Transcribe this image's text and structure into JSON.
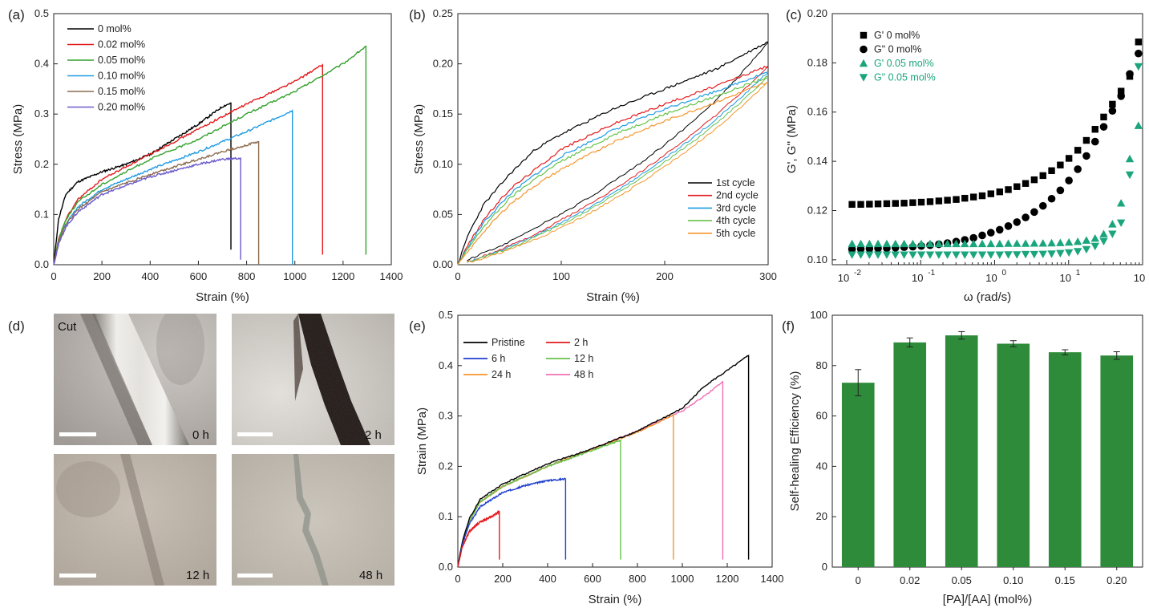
{
  "panels": {
    "a": {
      "label": "(a)"
    },
    "b": {
      "label": "(b)"
    },
    "c": {
      "label": "(c)"
    },
    "d": {
      "label": "(d)"
    },
    "e": {
      "label": "(e)"
    },
    "f": {
      "label": "(f)"
    }
  },
  "photos": {
    "cut_label": "Cut",
    "times": [
      "0 h",
      "2 h",
      "12 h",
      "48 h"
    ]
  },
  "chart_data": [
    {
      "id": "a",
      "type": "line",
      "xlabel": "Strain (%)",
      "ylabel": "Stress (MPa)",
      "xlim": [
        0,
        1400
      ],
      "ylim": [
        0,
        0.5
      ],
      "xticks": [
        0,
        200,
        400,
        600,
        800,
        1000,
        1200,
        1400
      ],
      "yticks": [
        0.0,
        0.1,
        0.2,
        0.3,
        0.4,
        0.5
      ],
      "legend_position": "top-left",
      "series": [
        {
          "name": "0 mol%",
          "color": "#000000",
          "x": [
            0,
            20,
            50,
            100,
            200,
            300,
            400,
            500,
            600,
            700,
            735
          ],
          "y": [
            0,
            0.09,
            0.14,
            0.165,
            0.185,
            0.2,
            0.22,
            0.25,
            0.28,
            0.315,
            0.322
          ],
          "break_at": 0.03
        },
        {
          "name": "0.02 mol%",
          "color": "#e41a1c",
          "x": [
            0,
            20,
            50,
            100,
            200,
            400,
            600,
            800,
            1000,
            1115
          ],
          "y": [
            0,
            0.05,
            0.09,
            0.13,
            0.17,
            0.22,
            0.27,
            0.32,
            0.365,
            0.398
          ],
          "break_at": 0.02
        },
        {
          "name": "0.05 mol%",
          "color": "#33a02c",
          "x": [
            0,
            20,
            50,
            100,
            200,
            400,
            600,
            800,
            1000,
            1200,
            1295
          ],
          "y": [
            0,
            0.05,
            0.09,
            0.125,
            0.16,
            0.21,
            0.25,
            0.3,
            0.345,
            0.4,
            0.435
          ],
          "break_at": 0.02
        },
        {
          "name": "0.10 mol%",
          "color": "#1f9be3",
          "x": [
            0,
            20,
            50,
            100,
            200,
            400,
            600,
            800,
            990
          ],
          "y": [
            0,
            0.045,
            0.08,
            0.115,
            0.15,
            0.19,
            0.225,
            0.265,
            0.307
          ],
          "break_at": 0.0
        },
        {
          "name": "0.15 mol%",
          "color": "#8c6d4f",
          "x": [
            0,
            20,
            50,
            100,
            200,
            400,
            600,
            700,
            850
          ],
          "y": [
            0,
            0.045,
            0.08,
            0.11,
            0.145,
            0.18,
            0.21,
            0.225,
            0.245
          ],
          "break_at": 0.0
        },
        {
          "name": "0.20 mol%",
          "color": "#6a5acd",
          "x": [
            0,
            20,
            50,
            100,
            200,
            400,
            600,
            700,
            775
          ],
          "y": [
            0,
            0.04,
            0.075,
            0.105,
            0.14,
            0.175,
            0.2,
            0.21,
            0.212
          ],
          "break_at": 0.01
        }
      ]
    },
    {
      "id": "b",
      "type": "line",
      "xlabel": "Strain (%)",
      "ylabel": "Stress (MPa)",
      "xlim": [
        0,
        300
      ],
      "ylim": [
        0,
        0.25
      ],
      "xticks": [
        0,
        100,
        200,
        300
      ],
      "yticks": [
        0.0,
        0.05,
        0.1,
        0.15,
        0.2,
        0.25
      ],
      "legend_position": "bottom-right",
      "series": [
        {
          "name": "1st  cycle",
          "color": "#000000",
          "x": [
            0,
            10,
            25,
            50,
            75,
            100,
            150,
            200,
            250,
            300
          ],
          "y": [
            0,
            0.03,
            0.06,
            0.09,
            0.115,
            0.13,
            0.155,
            0.175,
            0.195,
            0.222
          ]
        },
        {
          "name": "2nd cycle",
          "color": "#e41a1c",
          "x": [
            0,
            10,
            25,
            50,
            75,
            100,
            150,
            200,
            250,
            300
          ],
          "y": [
            0,
            0.02,
            0.045,
            0.075,
            0.095,
            0.115,
            0.14,
            0.16,
            0.178,
            0.198
          ]
        },
        {
          "name": "3rd  cycle",
          "color": "#1f9be3",
          "x": [
            0,
            10,
            25,
            50,
            75,
            100,
            150,
            200,
            250,
            300
          ],
          "y": [
            0,
            0.018,
            0.042,
            0.07,
            0.09,
            0.108,
            0.134,
            0.155,
            0.173,
            0.192
          ]
        },
        {
          "name": "4th  cycle",
          "color": "#66c24a",
          "x": [
            0,
            10,
            25,
            50,
            75,
            100,
            150,
            200,
            250,
            300
          ],
          "y": [
            0,
            0.016,
            0.038,
            0.066,
            0.086,
            0.103,
            0.129,
            0.15,
            0.168,
            0.187
          ]
        },
        {
          "name": "5th  cycle",
          "color": "#f5962d",
          "x": [
            0,
            10,
            25,
            50,
            75,
            100,
            150,
            200,
            250,
            300
          ],
          "y": [
            0,
            0.013,
            0.033,
            0.06,
            0.079,
            0.095,
            0.122,
            0.143,
            0.162,
            0.182
          ]
        }
      ]
    },
    {
      "id": "c",
      "type": "scatter",
      "xlabel": "ω (rad/s)",
      "ylabel": "G', G'' (MPa)",
      "x_scale": "log",
      "xlim": [
        0.01,
        100
      ],
      "ylim": [
        0.098,
        0.2
      ],
      "xticks": [
        0.01,
        0.1,
        1,
        10,
        100
      ],
      "xtick_mantissa": [
        "10",
        "10",
        "10",
        "10",
        "10"
      ],
      "xtick_exponents": [
        "-2",
        "-1",
        "0",
        "1",
        "2"
      ],
      "yticks": [
        0.1,
        0.12,
        0.14,
        0.16,
        0.18,
        0.2
      ],
      "legend_position": "top-left",
      "series": [
        {
          "name": "G' 0 mol%",
          "color": "#000000",
          "marker": "square",
          "x": [
            0.0118,
            0.0155,
            0.0203,
            0.0265,
            0.0348,
            0.0456,
            0.0597,
            0.0782,
            0.102,
            0.134,
            0.176,
            0.23,
            0.302,
            0.395,
            0.518,
            0.679,
            0.889,
            1.17,
            1.53,
            2.0,
            2.62,
            3.43,
            4.5,
            5.89,
            7.72,
            10.1,
            13.3,
            17.4,
            22.8,
            29.8,
            39.1,
            51.2,
            67.1,
            87.9
          ],
          "y": [
            0.1225,
            0.1225,
            0.1226,
            0.1227,
            0.1228,
            0.1229,
            0.123,
            0.1232,
            0.1234,
            0.1236,
            0.1239,
            0.1242,
            0.1245,
            0.125,
            0.1255,
            0.126,
            0.1268,
            0.1276,
            0.1285,
            0.1297,
            0.131,
            0.1325,
            0.1342,
            0.1362,
            0.1385,
            0.1412,
            0.1445,
            0.1485,
            0.153,
            0.158,
            0.1632,
            0.1685,
            0.1745,
            0.1885
          ]
        },
        {
          "name": "G\" 0 mol%",
          "color": "#000000",
          "marker": "circle",
          "x": [
            0.0118,
            0.0155,
            0.0203,
            0.0265,
            0.0348,
            0.0456,
            0.0597,
            0.0782,
            0.102,
            0.134,
            0.176,
            0.23,
            0.302,
            0.395,
            0.518,
            0.679,
            0.889,
            1.17,
            1.53,
            2.0,
            2.62,
            3.43,
            4.5,
            5.89,
            7.72,
            10.1,
            13.3,
            17.4,
            22.8,
            29.8,
            39.1,
            51.2,
            67.1,
            87.9
          ],
          "y": [
            0.1043,
            0.1044,
            0.1045,
            0.1046,
            0.1047,
            0.1049,
            0.1051,
            0.1053,
            0.1056,
            0.1059,
            0.1063,
            0.1068,
            0.1074,
            0.1081,
            0.1089,
            0.1099,
            0.111,
            0.1122,
            0.1137,
            0.1153,
            0.1172,
            0.1194,
            0.1219,
            0.1248,
            0.1282,
            0.1322,
            0.1368,
            0.1422,
            0.148,
            0.154,
            0.1605,
            0.1665,
            0.1755,
            0.1838
          ]
        },
        {
          "name": "G' 0.05 mol%",
          "color": "#1aa57d",
          "marker": "triangle-up",
          "x": [
            0.0118,
            0.0155,
            0.0203,
            0.0265,
            0.0348,
            0.0456,
            0.0597,
            0.0782,
            0.102,
            0.134,
            0.176,
            0.23,
            0.302,
            0.395,
            0.518,
            0.679,
            0.889,
            1.17,
            1.53,
            2.0,
            2.62,
            3.43,
            4.5,
            5.89,
            7.72,
            10.1,
            13.3,
            17.4,
            22.8,
            29.8,
            39.1,
            51.2,
            67.1,
            87.9
          ],
          "y": [
            0.1065,
            0.1065,
            0.1065,
            0.1065,
            0.1065,
            0.1065,
            0.1065,
            0.1065,
            0.1065,
            0.1065,
            0.1065,
            0.1065,
            0.1065,
            0.1065,
            0.1065,
            0.1065,
            0.1065,
            0.1065,
            0.1066,
            0.1066,
            0.1066,
            0.1067,
            0.1067,
            0.1068,
            0.1069,
            0.1071,
            0.1074,
            0.1079,
            0.1087,
            0.1105,
            0.1145,
            0.123,
            0.141,
            0.1545
          ]
        },
        {
          "name": "G\" 0.05 mol%",
          "color": "#1aa57d",
          "marker": "triangle-down",
          "x": [
            0.0118,
            0.0155,
            0.0203,
            0.0265,
            0.0348,
            0.0456,
            0.0597,
            0.0782,
            0.102,
            0.134,
            0.176,
            0.23,
            0.302,
            0.395,
            0.518,
            0.679,
            0.889,
            1.17,
            1.53,
            2.0,
            2.62,
            3.43,
            4.5,
            5.89,
            7.72,
            10.1,
            13.3,
            17.4,
            22.8,
            29.8,
            39.1,
            51.2,
            67.1,
            87.9
          ],
          "y": [
            0.102,
            0.102,
            0.102,
            0.102,
            0.102,
            0.102,
            0.102,
            0.102,
            0.102,
            0.102,
            0.102,
            0.102,
            0.102,
            0.102,
            0.102,
            0.102,
            0.102,
            0.102,
            0.1021,
            0.1021,
            0.1022,
            0.1022,
            0.1023,
            0.1024,
            0.1026,
            0.1029,
            0.1034,
            0.1042,
            0.1055,
            0.1075,
            0.1105,
            0.115,
            0.1345,
            0.1785
          ]
        }
      ]
    },
    {
      "id": "e",
      "type": "line",
      "xlabel": "Strain (%)",
      "ylabel": "Strain (MPa)",
      "xlim": [
        0,
        1400
      ],
      "ylim": [
        0,
        0.5
      ],
      "xticks": [
        0,
        200,
        400,
        600,
        800,
        1000,
        1200,
        1400
      ],
      "yticks": [
        0.0,
        0.1,
        0.2,
        0.3,
        0.4,
        0.5
      ],
      "legend_position": "top-left",
      "series": [
        {
          "name": "Pristine",
          "color": "#000000",
          "x": [
            0,
            20,
            50,
            100,
            200,
            400,
            600,
            800,
            1000,
            1100,
            1200,
            1295
          ],
          "y": [
            0,
            0.05,
            0.095,
            0.135,
            0.165,
            0.205,
            0.235,
            0.27,
            0.315,
            0.36,
            0.39,
            0.42
          ],
          "break_at": 0.015
        },
        {
          "name": "2 h",
          "color": "#e41a1c",
          "x": [
            0,
            20,
            50,
            100,
            150,
            185
          ],
          "y": [
            0,
            0.04,
            0.07,
            0.09,
            0.1,
            0.11
          ],
          "break_at": 0.015
        },
        {
          "name": "6 h",
          "color": "#1f3fd1",
          "x": [
            0,
            20,
            50,
            100,
            200,
            300,
            400,
            480
          ],
          "y": [
            0,
            0.045,
            0.085,
            0.12,
            0.148,
            0.162,
            0.172,
            0.175
          ],
          "break_at": 0.015
        },
        {
          "name": "12 h",
          "color": "#66c24a",
          "x": [
            0,
            20,
            50,
            100,
            200,
            400,
            600,
            725
          ],
          "y": [
            0,
            0.05,
            0.09,
            0.13,
            0.16,
            0.2,
            0.232,
            0.252
          ],
          "break_at": 0.015
        },
        {
          "name": "24 h",
          "color": "#f5962d",
          "x": [
            0,
            20,
            50,
            100,
            200,
            400,
            600,
            800,
            960
          ],
          "y": [
            0,
            0.05,
            0.09,
            0.13,
            0.16,
            0.2,
            0.235,
            0.268,
            0.302
          ],
          "break_at": 0.015
        },
        {
          "name": "48 h",
          "color": "#f06fb5",
          "x": [
            0,
            20,
            50,
            100,
            200,
            400,
            600,
            800,
            1000,
            1100,
            1180
          ],
          "y": [
            0,
            0.05,
            0.09,
            0.13,
            0.16,
            0.2,
            0.235,
            0.27,
            0.31,
            0.34,
            0.368
          ],
          "break_at": 0.015
        }
      ]
    },
    {
      "id": "f",
      "type": "bar",
      "xlabel": "[PA]/[AA] (mol%)",
      "ylabel": "Self-healing Efficiency (%)",
      "ylim": [
        0,
        100
      ],
      "yticks": [
        0,
        20,
        40,
        60,
        80,
        100
      ],
      "categories": [
        "0",
        "0.02",
        "0.05",
        "0.10",
        "0.15",
        "0.20"
      ],
      "values": [
        73.2,
        89.2,
        92.0,
        88.7,
        85.3,
        84.0
      ],
      "errors": [
        5.2,
        1.8,
        1.5,
        1.2,
        1.0,
        1.5
      ],
      "color": "#2e8b3a"
    }
  ]
}
